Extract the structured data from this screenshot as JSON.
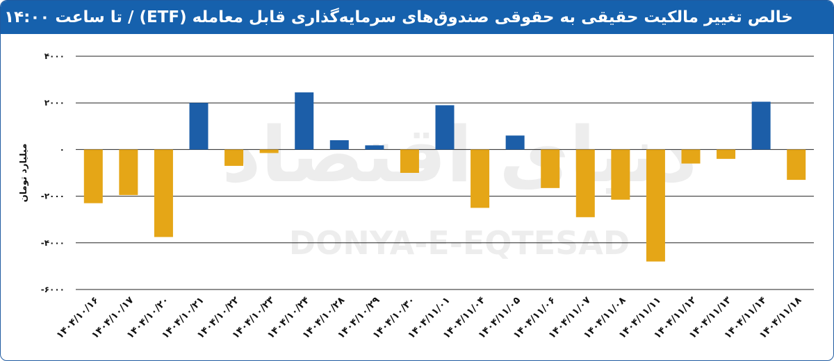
{
  "header": {
    "title": "خالص تغییر مالکیت حقیقی به حقوقی صندوق‌های سرمایه‌گذاری قابل معامله (ETF)  / تا ساعت ۱۴:۰۰"
  },
  "watermark": {
    "latin": "DONYA-E-EQTESAD",
    "persian": "دنیای اقتصاد"
  },
  "colors": {
    "header": "#1661ad",
    "positive": "#1c5ea8",
    "negative": "#e5a617",
    "grid": "#222222"
  },
  "chart_data": {
    "type": "bar",
    "ylabel": "میلیارد تومان",
    "ylim": [
      -6000,
      4000
    ],
    "yticks": [
      4000,
      2000,
      0,
      -2000,
      -4000,
      -6000
    ],
    "ytick_labels": [
      "۴۰۰۰",
      "۲۰۰۰",
      "۰",
      "-۲۰۰۰",
      "-۴۰۰۰",
      "-۶۰۰۰"
    ],
    "grid": true,
    "categories": [
      "۱۴۰۴/۱۰/۱۶",
      "۱۴۰۴/۱۰/۱۷",
      "۱۴۰۴/۱۰/۲۰",
      "۱۴۰۴/۱۰/۲۱",
      "۱۴۰۴/۱۰/۲۲",
      "۱۴۰۴/۱۰/۲۳",
      "۱۴۰۴/۱۰/۲۴",
      "۱۴۰۴/۱۰/۲۸",
      "۱۴۰۴/۱۰/۲۹",
      "۱۴۰۴/۱۰/۳۰",
      "۱۴۰۴/۱۱/۰۱",
      "۱۴۰۴/۱۱/۰۴",
      "۱۴۰۴/۱۱/۰۵",
      "۱۴۰۴/۱۱/۰۶",
      "۱۴۰۴/۱۱/۰۷",
      "۱۴۰۴/۱۱/۰۸",
      "۱۴۰۴/۱۱/۱۱",
      "۱۴۰۴/۱۱/۱۲",
      "۱۴۰۴/۱۱/۱۳",
      "۱۴۰۴/۱۱/۱۴",
      "۱۴۰۴/۱۱/۱۸"
    ],
    "values": [
      -2300,
      -1950,
      -3750,
      2000,
      -700,
      -150,
      2450,
      400,
      180,
      -1000,
      1900,
      -2500,
      600,
      -1650,
      -2900,
      -2150,
      -4800,
      -600,
      -400,
      2050,
      -1300
    ]
  }
}
